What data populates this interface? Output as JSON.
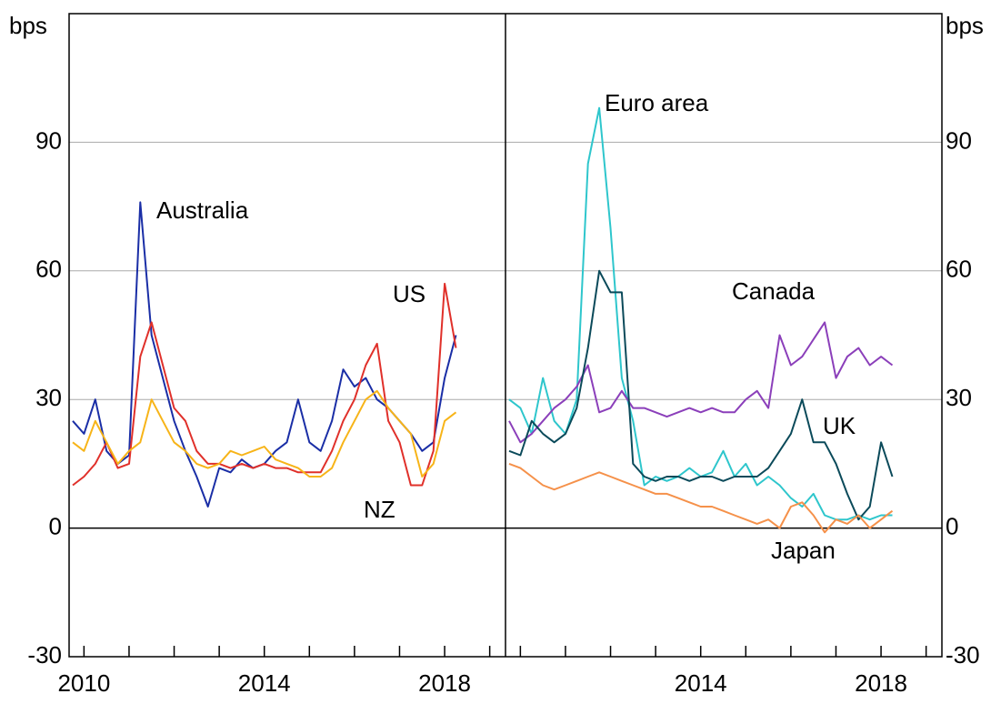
{
  "chart_data": [
    {
      "type": "line",
      "y_label": "bps",
      "x": [
        2009.75,
        2010,
        2010.25,
        2010.5,
        2010.75,
        2011,
        2011.25,
        2011.5,
        2011.75,
        2012,
        2012.25,
        2012.5,
        2012.75,
        2013,
        2013.25,
        2013.5,
        2013.75,
        2014,
        2014.25,
        2014.5,
        2014.75,
        2015,
        2015.25,
        2015.5,
        2015.75,
        2016,
        2016.25,
        2016.5,
        2016.75,
        2017,
        2017.25,
        2017.5,
        2017.75,
        2018,
        2018.25
      ],
      "xlim": [
        2009.67,
        2019.35
      ],
      "xticks": [
        2010,
        2014,
        2018
      ],
      "minor_xticks": [
        2011,
        2012,
        2013,
        2015,
        2016,
        2017,
        2019
      ],
      "ylim": [
        -30,
        120
      ],
      "yticks": [
        -30,
        0,
        30,
        60,
        90
      ],
      "grid": true,
      "series": [
        {
          "name": "Australia",
          "color": "#1a2ea6",
          "values": [
            25,
            22,
            30,
            18,
            15,
            17,
            76,
            45,
            35,
            25,
            18,
            12,
            5,
            14,
            13,
            16,
            14,
            15,
            18,
            20,
            30,
            20,
            18,
            25,
            37,
            33,
            35,
            30,
            28,
            25,
            22,
            18,
            20,
            35,
            45
          ]
        },
        {
          "name": "US",
          "color": "#e0302a",
          "values": [
            10,
            12,
            15,
            20,
            14,
            15,
            40,
            48,
            38,
            28,
            25,
            18,
            15,
            15,
            14,
            15,
            14,
            15,
            14,
            14,
            13,
            13,
            13,
            18,
            25,
            30,
            38,
            43,
            25,
            20,
            10,
            10,
            18,
            57,
            42
          ]
        },
        {
          "name": "NZ",
          "color": "#f7b418",
          "values": [
            20,
            18,
            25,
            20,
            15,
            18,
            20,
            30,
            25,
            20,
            18,
            15,
            14,
            15,
            18,
            17,
            18,
            19,
            16,
            15,
            14,
            12,
            12,
            14,
            20,
            25,
            30,
            32,
            28,
            25,
            22,
            12,
            15,
            25,
            27
          ]
        }
      ]
    },
    {
      "type": "line",
      "y_label": "bps",
      "x": [
        2009.75,
        2010,
        2010.25,
        2010.5,
        2010.75,
        2011,
        2011.25,
        2011.5,
        2011.75,
        2012,
        2012.25,
        2012.5,
        2012.75,
        2013,
        2013.25,
        2013.5,
        2013.75,
        2014,
        2014.25,
        2014.5,
        2014.75,
        2015,
        2015.25,
        2015.5,
        2015.75,
        2016,
        2016.25,
        2016.5,
        2016.75,
        2017,
        2017.25,
        2017.5,
        2017.75,
        2018,
        2018.25
      ],
      "xlim": [
        2009.67,
        2019.35
      ],
      "xticks": [
        2014,
        2018
      ],
      "minor_xticks": [
        2010,
        2011,
        2012,
        2013,
        2015,
        2016,
        2017,
        2019
      ],
      "ylim": [
        -30,
        120
      ],
      "yticks": [
        -30,
        0,
        30,
        60,
        90
      ],
      "grid": true,
      "series": [
        {
          "name": "Euro area",
          "color": "#2ec6cc",
          "values": [
            30,
            28,
            22,
            35,
            25,
            22,
            30,
            85,
            98,
            70,
            35,
            25,
            10,
            12,
            11,
            12,
            14,
            12,
            13,
            18,
            12,
            15,
            10,
            12,
            10,
            7,
            5,
            8,
            3,
            2,
            2,
            3,
            2,
            3,
            3
          ]
        },
        {
          "name": "Canada",
          "color": "#8b3fba",
          "values": [
            25,
            20,
            22,
            25,
            28,
            30,
            33,
            38,
            27,
            28,
            32,
            28,
            28,
            27,
            26,
            27,
            28,
            27,
            28,
            27,
            27,
            30,
            32,
            28,
            45,
            38,
            40,
            44,
            48,
            35,
            40,
            42,
            38,
            40,
            38
          ]
        },
        {
          "name": "UK",
          "color": "#0b4a5a",
          "values": [
            18,
            17,
            25,
            22,
            20,
            22,
            28,
            42,
            60,
            55,
            55,
            15,
            12,
            11,
            12,
            12,
            11,
            12,
            12,
            11,
            12,
            12,
            12,
            14,
            18,
            22,
            30,
            20,
            20,
            15,
            8,
            2,
            5,
            20,
            12
          ]
        },
        {
          "name": "Japan",
          "color": "#f5914a",
          "values": [
            15,
            14,
            12,
            10,
            9,
            10,
            11,
            12,
            13,
            12,
            11,
            10,
            9,
            8,
            8,
            7,
            6,
            5,
            5,
            4,
            3,
            2,
            1,
            2,
            0,
            5,
            6,
            3,
            -1,
            2,
            1,
            3,
            0,
            2,
            4
          ]
        }
      ]
    }
  ]
}
